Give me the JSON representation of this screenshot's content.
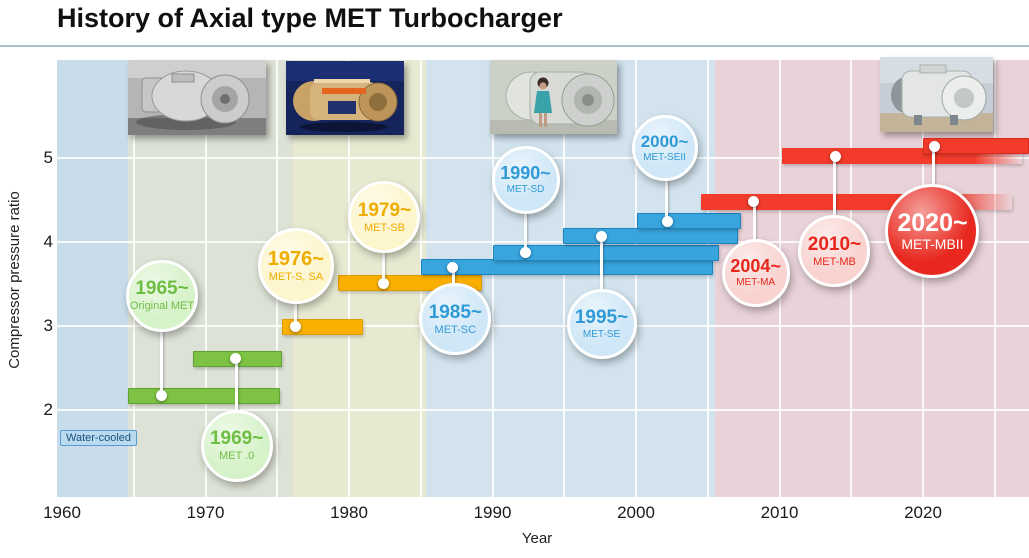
{
  "title": "History of Axial type MET Turbocharger",
  "axes": {
    "x_label": "Year",
    "y_label": "Compressor pressure ratio",
    "x_ticks": [
      1960,
      1970,
      1980,
      1990,
      2000,
      2010,
      2020
    ],
    "y_ticks": [
      5,
      4,
      3,
      2
    ]
  },
  "annotations": {
    "water_cooled": "Water-cooled"
  },
  "photos": [
    "bw-photo-early-met-turbocharger",
    "color-photo-met-cutaway-model",
    "photo-woman-beside-met-sd-turbocharger",
    "photo-met-mbii-turbocharger-workshop"
  ],
  "chart_data": {
    "type": "bar",
    "subtype": "horizontal-timeline-gantt",
    "title": "History of Axial type MET Turbocharger",
    "xlabel": "Year",
    "ylabel": "Compressor pressure ratio",
    "xlim": [
      1959.6,
      2027.4
    ],
    "ylim": [
      0.96,
      6.17
    ],
    "grid": "white gridlines: vertical every 5 years, horizontal every 1 pressure-ratio unit",
    "legend_position": "none",
    "eras": [
      {
        "from": 1959.6,
        "to": 1964.6,
        "color": "#c9dcea"
      },
      {
        "from": 1964.6,
        "to": 1976.1,
        "color": "#dde2d6"
      },
      {
        "from": 1976.1,
        "to": 1985.4,
        "color": "#e7e9d1"
      },
      {
        "from": 1985.4,
        "to": 2005.5,
        "color": "#d2e3ee"
      },
      {
        "from": 2005.5,
        "to": 2027.4,
        "color": "#e9d3d9"
      }
    ],
    "group_styles": {
      "green": {
        "bar": "#7dc242",
        "bar_border": "#5fa233",
        "bubble": "#d6f2c9",
        "text": "#6fbe44"
      },
      "yellow": {
        "bar": "#f9b000",
        "bar_border": "#dd9c00",
        "bubble": "#fdf5cc",
        "text": "#efac00"
      },
      "blue": {
        "bar": "#38a5dd",
        "bar_border": "#1d83be",
        "bubble": "#cfe7f7",
        "text": "#2f9ad6"
      },
      "pink": {
        "bar": "#f23b2b",
        "bar_border": "#d6291b",
        "bubble": "#f8d3d0",
        "text": "#e5271c"
      },
      "red": {
        "bar": "#f23b2b",
        "bar_border": "#d6291b",
        "bubble": "#e8281e",
        "text": "#ffffff"
      }
    },
    "series": [
      {
        "year_label": "1965~",
        "model": "Original MET",
        "group": "green",
        "start": 1964.6,
        "end": 1975.2,
        "end_fade": false,
        "pressure_ratio": 2.17,
        "marker_year": 1966.9,
        "bubble_dx": 1,
        "bubble_dy": -100,
        "bubble_r": 36
      },
      {
        "year_label": "1969~",
        "model": "MET .0",
        "group": "green",
        "start": 1969.1,
        "end": 1975.3,
        "end_fade": false,
        "pressure_ratio": 2.61,
        "marker_year": 1972.1,
        "bubble_dx": 1,
        "bubble_dy": 87,
        "bubble_r": 36
      },
      {
        "year_label": "1976~",
        "model": "MET-S, SA",
        "group": "yellow",
        "start": 1975.3,
        "end": 1981.0,
        "end_fade": false,
        "pressure_ratio": 2.99,
        "marker_year": 1976.3,
        "bubble_dx": 0,
        "bubble_dy": -61,
        "bubble_r": 38
      },
      {
        "year_label": "1979~",
        "model": "MET-SB",
        "group": "yellow",
        "start": 1979.2,
        "end": 1989.3,
        "end_fade": false,
        "pressure_ratio": 3.51,
        "marker_year": 1982.4,
        "bubble_dx": 1,
        "bubble_dy": -66,
        "bubble_r": 36
      },
      {
        "year_label": "1985~",
        "model": "MET-SC",
        "group": "blue",
        "start": 1985.0,
        "end": 2005.4,
        "end_fade": false,
        "pressure_ratio": 3.7,
        "marker_year": 1987.2,
        "bubble_dx": 3,
        "bubble_dy": 52,
        "bubble_r": 36
      },
      {
        "year_label": "1990~",
        "model": "MET-SD",
        "group": "blue",
        "start": 1990.0,
        "end": 2005.8,
        "end_fade": false,
        "pressure_ratio": 3.87,
        "marker_year": 1992.3,
        "bubble_dx": 0,
        "bubble_dy": -73,
        "bubble_r": 34
      },
      {
        "year_label": "1995~",
        "model": "MET-SE",
        "group": "blue",
        "start": 1994.9,
        "end": 2007.1,
        "end_fade": false,
        "pressure_ratio": 4.07,
        "marker_year": 1997.6,
        "bubble_dx": 0,
        "bubble_dy": 88,
        "bubble_r": 35
      },
      {
        "year_label": "2000~",
        "model": "MET-SEII",
        "group": "blue",
        "start": 2000.1,
        "end": 2007.3,
        "end_fade": false,
        "pressure_ratio": 4.25,
        "marker_year": 2002.2,
        "bubble_dx": -3,
        "bubble_dy": -73,
        "bubble_r": 33
      },
      {
        "year_label": "2004~",
        "model": "MET-MA",
        "group": "pink",
        "start": 2004.5,
        "end": 2026.2,
        "end_fade": true,
        "pressure_ratio": 4.48,
        "marker_year": 2008.2,
        "bubble_dx": 2,
        "bubble_dy": 71,
        "bubble_r": 34
      },
      {
        "year_label": "2010~",
        "model": "MET-MB",
        "group": "pink",
        "start": 2010.2,
        "end": 2026.9,
        "end_fade": true,
        "pressure_ratio": 5.02,
        "marker_year": 2013.9,
        "bubble_dx": -1,
        "bubble_dy": 95,
        "bubble_r": 36
      },
      {
        "year_label": "2020~",
        "model": "MET-MBII",
        "group": "red",
        "start": 2020.0,
        "end": 2027.4,
        "end_fade": false,
        "pressure_ratio": 5.14,
        "marker_year": 2020.8,
        "bubble_dx": -2,
        "bubble_dy": 85,
        "bubble_r": 47
      }
    ]
  }
}
